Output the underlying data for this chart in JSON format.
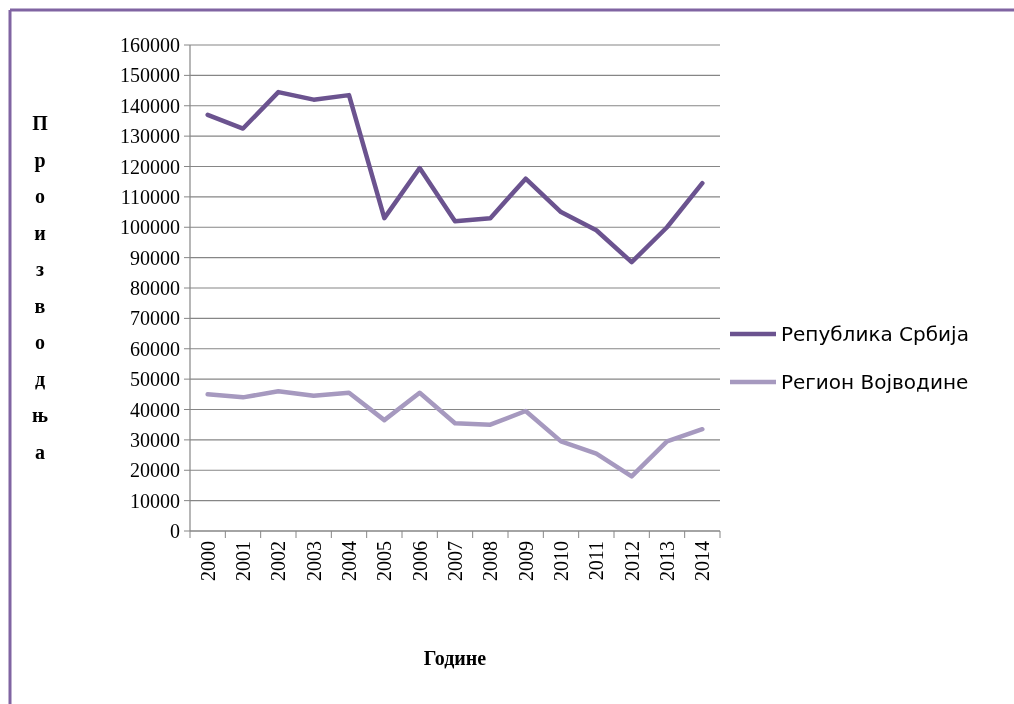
{
  "chart_data": {
    "type": "line",
    "xlabel": "Године",
    "ylabel": "Производња",
    "categories": [
      "2000",
      "2001",
      "2002",
      "2003",
      "2004",
      "2005",
      "2006",
      "2007",
      "2008",
      "2009",
      "2010",
      "2011",
      "2012",
      "2013",
      "2014"
    ],
    "series": [
      {
        "name": "Република Србија",
        "color": "#6b538f",
        "values": [
          137000,
          132500,
          144500,
          142000,
          143500,
          103000,
          119500,
          102000,
          103000,
          116000,
          105000,
          99000,
          88500,
          100000,
          114500
        ]
      },
      {
        "name": "Регион Војводине",
        "color": "#a699bf",
        "values": [
          45000,
          44000,
          46000,
          44500,
          45500,
          36500,
          45500,
          35500,
          35000,
          39500,
          29500,
          25500,
          18000,
          29500,
          33500
        ]
      }
    ],
    "ylim": [
      0,
      160000
    ],
    "yticks": [
      0,
      10000,
      20000,
      30000,
      40000,
      50000,
      60000,
      70000,
      80000,
      90000,
      100000,
      110000,
      120000,
      130000,
      140000,
      150000,
      160000
    ],
    "grid": "y",
    "legend": "right",
    "line_style": "solid"
  }
}
